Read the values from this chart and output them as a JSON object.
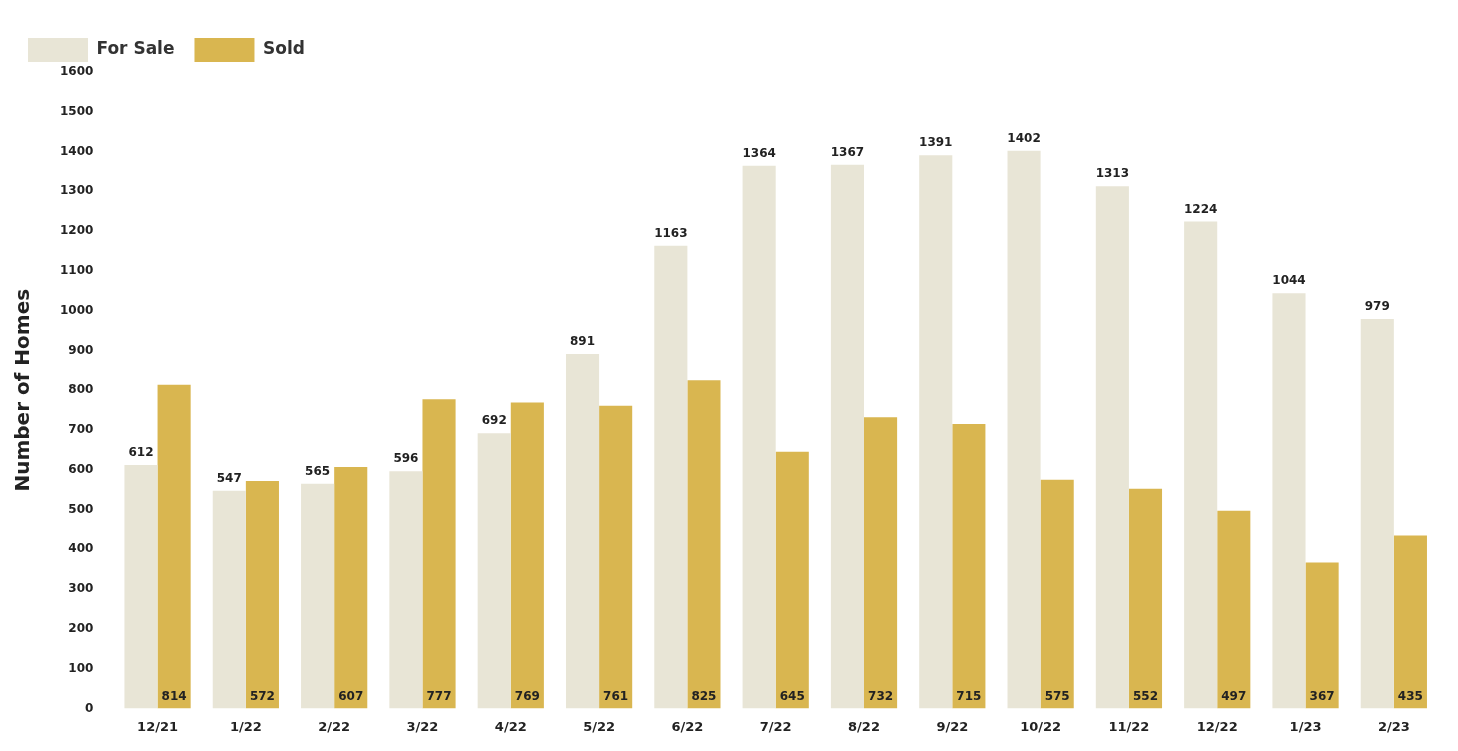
{
  "chart_data": {
    "type": "bar",
    "ylabel": "Number of Homes",
    "categories": [
      "12/21",
      "1/22",
      "2/22",
      "3/22",
      "4/22",
      "5/22",
      "6/22",
      "7/22",
      "8/22",
      "9/22",
      "10/22",
      "11/22",
      "12/22",
      "1/23",
      "2/23"
    ],
    "series": [
      {
        "name": "For Sale",
        "color": "#e8e5d6",
        "values": [
          612,
          547,
          565,
          596,
          692,
          891,
          1163,
          1364,
          1367,
          1391,
          1402,
          1313,
          1224,
          1044,
          979
        ]
      },
      {
        "name": "Sold",
        "color": "#d9b650",
        "values": [
          814,
          572,
          607,
          777,
          769,
          761,
          825,
          645,
          732,
          715,
          575,
          552,
          497,
          367,
          435
        ]
      }
    ],
    "ylim": [
      0,
      1600
    ],
    "yticks": [
      0,
      100,
      200,
      300,
      400,
      500,
      600,
      700,
      800,
      900,
      1000,
      1100,
      1200,
      1300,
      1400,
      1500,
      1600
    ],
    "grid": false,
    "legend": "top left",
    "data_labels": true
  }
}
